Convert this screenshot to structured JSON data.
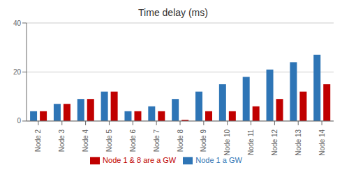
{
  "chart_data": {
    "type": "bar",
    "title": "Time delay (ms)",
    "categories": [
      "Node 2",
      "Node 3",
      "Node 4",
      "Node 5",
      "Node 6",
      "Node 7",
      "Node 8",
      "Node 9",
      "Node 10",
      "Node 11",
      "Node 12",
      "Node 13",
      "Node 14"
    ],
    "series": [
      {
        "name": "Node 1 a GW",
        "color": "#2E75B6",
        "values": [
          4,
          7,
          9,
          12,
          4,
          6,
          9,
          12,
          15,
          18,
          21,
          24,
          27
        ]
      },
      {
        "name": "Node 1 & 8 are a GW",
        "color": "#C00000",
        "values": [
          4,
          7,
          9,
          12,
          4,
          4,
          0.5,
          4,
          4,
          6,
          9,
          12,
          15
        ]
      }
    ],
    "ylim": [
      0,
      40
    ],
    "yticks": [
      0,
      20,
      40
    ],
    "grid": true,
    "legend": "bottom"
  }
}
